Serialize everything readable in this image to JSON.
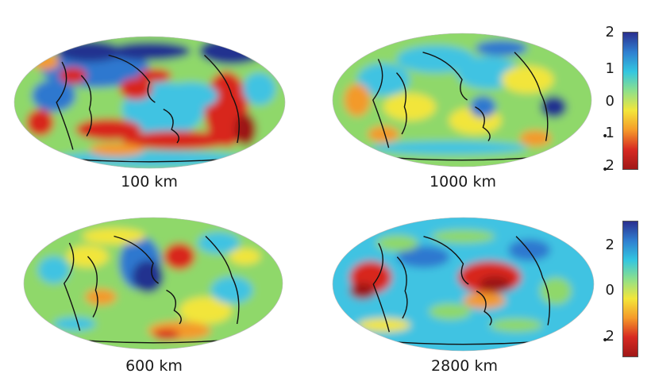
{
  "maps": [
    {
      "id": "map-100",
      "label": "100 km",
      "variant": 0
    },
    {
      "id": "map-1000",
      "label": "1000 km",
      "variant": 1
    },
    {
      "id": "map-600",
      "label": "600 km",
      "variant": 2
    },
    {
      "id": "map-2800",
      "label": "2800 km",
      "variant": 3
    }
  ],
  "colorbar_top": {
    "ticks": [
      "2",
      "1",
      "0",
      "1",
      "2"
    ],
    "colors": [
      "#2a2f8f",
      "#2f7fd0",
      "#33c6e0",
      "#8ee08a",
      "#f3e63a",
      "#f59a2a",
      "#d72a22",
      "#a01818"
    ]
  },
  "colorbar_bottom": {
    "ticks": [
      "2",
      "0",
      "2"
    ],
    "colors": [
      "#2a2f8f",
      "#2f7fd0",
      "#33c6e0",
      "#8ee08a",
      "#f3e63a",
      "#f59a2a",
      "#d72a22",
      "#a01818"
    ]
  },
  "palette": {
    "blue_dark": "#23308f",
    "blue": "#2e78cf",
    "cyan": "#3fc3e2",
    "green": "#8fd86a",
    "yellow": "#f2e53b",
    "orange": "#f39a2b",
    "red": "#d8281f",
    "red_dark": "#9c1616",
    "coast": "#111111"
  }
}
